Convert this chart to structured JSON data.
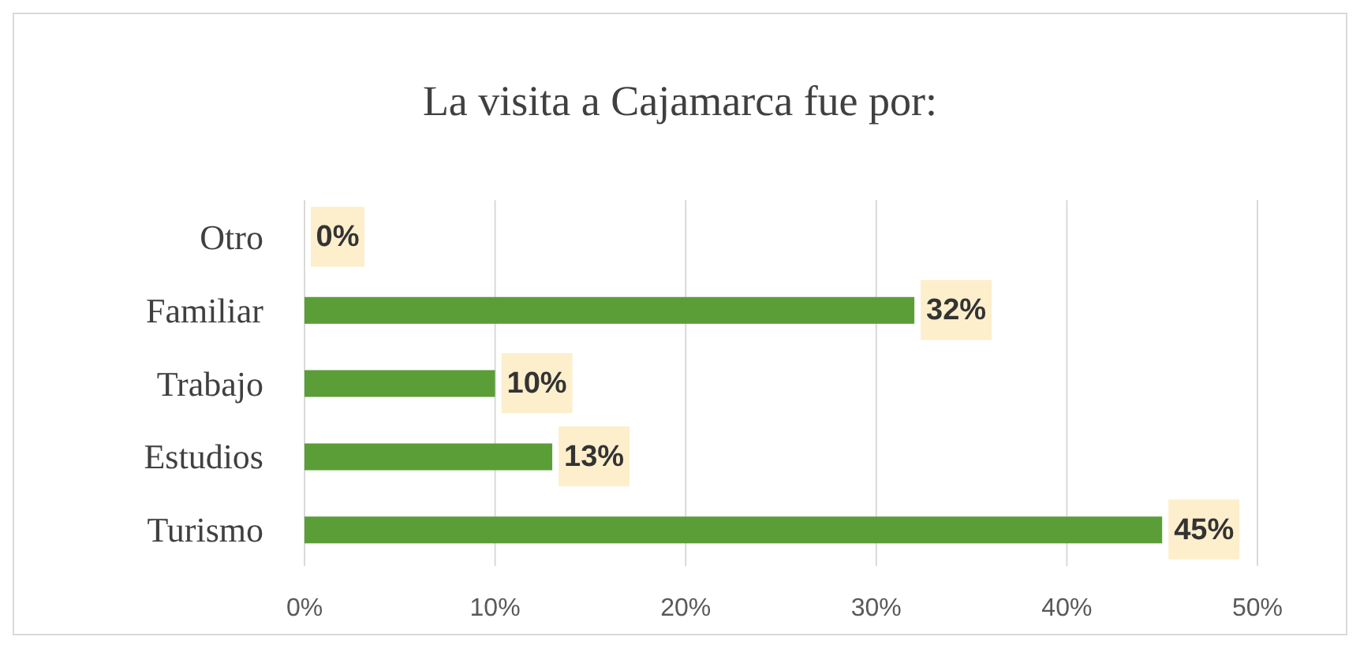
{
  "chart_data": {
    "type": "bar",
    "orientation": "horizontal",
    "title": "La visita a Cajamarca fue por:",
    "categories": [
      "Otro",
      "Familiar",
      "Trabajo",
      "Estudios",
      "Turismo"
    ],
    "values": [
      0,
      32,
      10,
      13,
      45
    ],
    "value_labels": [
      "0%",
      "32%",
      "10%",
      "13%",
      "45%"
    ],
    "color": "#5b9e38",
    "xlim": [
      0,
      50
    ],
    "xticks": [
      {
        "value": 0,
        "label": "0%"
      },
      {
        "value": 10,
        "label": "10%"
      },
      {
        "value": 20,
        "label": "20%"
      },
      {
        "value": 30,
        "label": "30%"
      },
      {
        "value": 40,
        "label": "40%"
      },
      {
        "value": 50,
        "label": "50%"
      }
    ],
    "grid": "x"
  }
}
